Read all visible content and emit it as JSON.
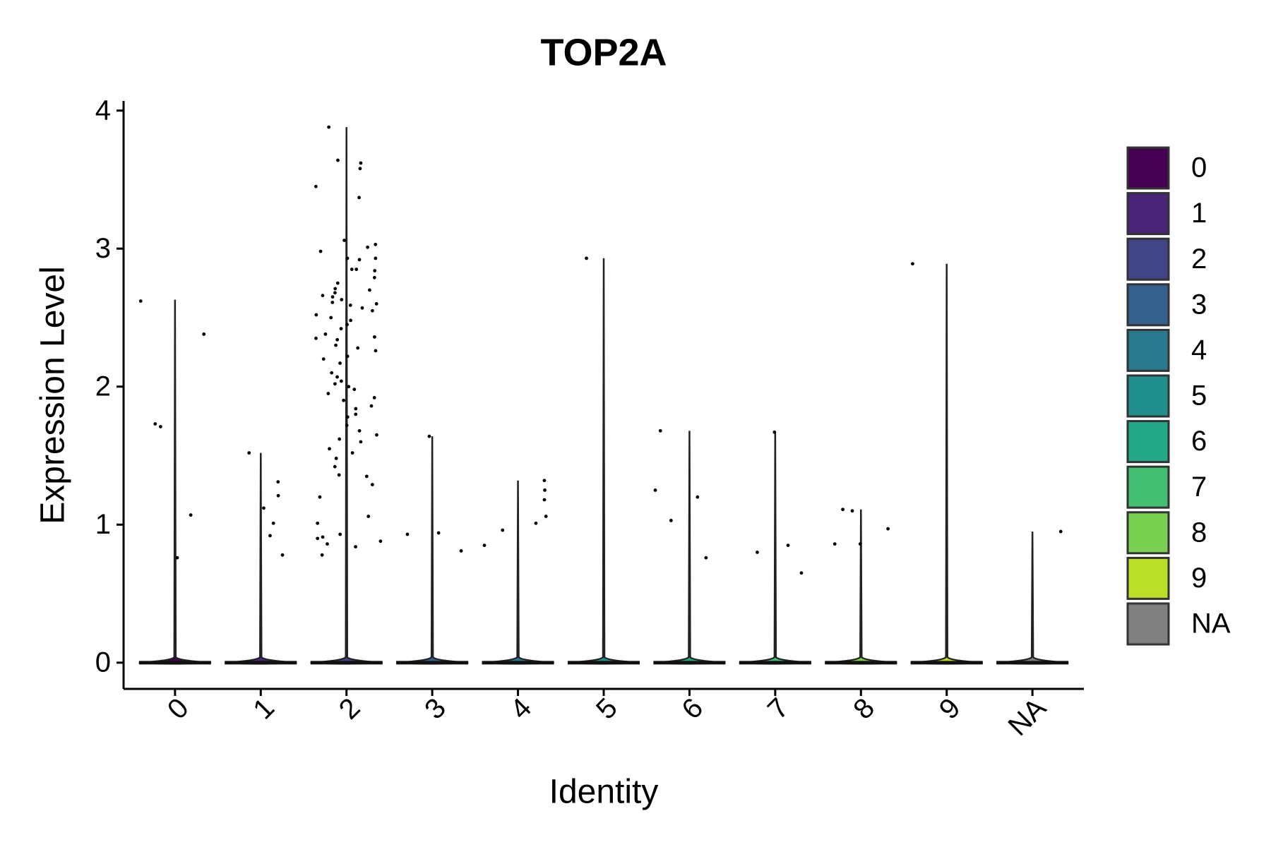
{
  "chart_data": {
    "type": "violin",
    "title": "TOP2A",
    "x_label": "Identity",
    "y_label": "Expression Level",
    "categories": [
      "0",
      "1",
      "2",
      "3",
      "4",
      "5",
      "6",
      "7",
      "8",
      "9",
      "NA"
    ],
    "ylim": [
      -0.19,
      4.07
    ],
    "yticks": [
      0,
      1,
      2,
      3,
      4
    ],
    "series": [
      {
        "name": "0",
        "color": "#440154",
        "min": 0,
        "max": 2.63,
        "points": [
          2.62,
          2.38,
          1.71,
          1.73,
          1.07,
          0.76
        ]
      },
      {
        "name": "1",
        "color": "#482576",
        "min": 0,
        "max": 1.52,
        "points": [
          1.52,
          1.31,
          1.21,
          1.12,
          1.01,
          0.92,
          0.78
        ]
      },
      {
        "name": "2",
        "color": "#414487",
        "min": 0,
        "max": 3.88,
        "points": [
          3.88,
          3.64,
          3.62,
          3.58,
          3.45,
          3.37,
          3.06,
          3.03,
          3.01,
          2.98,
          2.93,
          2.93,
          2.92,
          2.85,
          2.85,
          2.84,
          2.79,
          2.75,
          2.71,
          2.7,
          2.68,
          2.66,
          2.65,
          2.63,
          2.61,
          2.6,
          2.59,
          2.57,
          2.55,
          2.52,
          2.5,
          2.48,
          2.45,
          2.42,
          2.38,
          2.36,
          2.35,
          2.34,
          2.3,
          2.28,
          2.26,
          2.22,
          2.2,
          2.17,
          2.1,
          2.07,
          2.04,
          2.02,
          2.0,
          1.98,
          1.95,
          1.92,
          1.9,
          1.86,
          1.84,
          1.8,
          1.78,
          1.72,
          1.68,
          1.65,
          1.62,
          1.6,
          1.55,
          1.52,
          1.48,
          1.42,
          1.36,
          1.35,
          1.29,
          1.2,
          1.06,
          1.01,
          0.93,
          0.91,
          0.9,
          0.88,
          0.86,
          0.84,
          0.78
        ]
      },
      {
        "name": "3",
        "color": "#35608D",
        "min": 0,
        "max": 1.64,
        "points": [
          1.64,
          0.94,
          0.93,
          0.81
        ]
      },
      {
        "name": "4",
        "color": "#2A788E",
        "min": 0,
        "max": 1.32,
        "points": [
          1.32,
          1.25,
          1.18,
          1.06,
          1.01,
          0.96,
          0.85
        ]
      },
      {
        "name": "5",
        "color": "#21908C",
        "min": 0,
        "max": 2.93,
        "points": [
          2.93
        ]
      },
      {
        "name": "6",
        "color": "#22A884",
        "min": 0,
        "max": 1.68,
        "points": [
          1.68,
          1.25,
          1.2,
          1.03,
          0.76
        ]
      },
      {
        "name": "7",
        "color": "#43BF71",
        "min": 0,
        "max": 1.67,
        "points": [
          1.67,
          0.85,
          0.8,
          0.65
        ]
      },
      {
        "name": "8",
        "color": "#7AD151",
        "min": 0,
        "max": 1.11,
        "points": [
          1.11,
          1.1,
          0.97,
          0.86,
          0.86
        ]
      },
      {
        "name": "9",
        "color": "#BBDF27",
        "min": 0,
        "max": 2.89,
        "points": [
          2.89
        ]
      },
      {
        "name": "NA",
        "color": "#808080",
        "min": 0,
        "max": 0.95,
        "points": [
          0.95
        ]
      }
    ]
  }
}
